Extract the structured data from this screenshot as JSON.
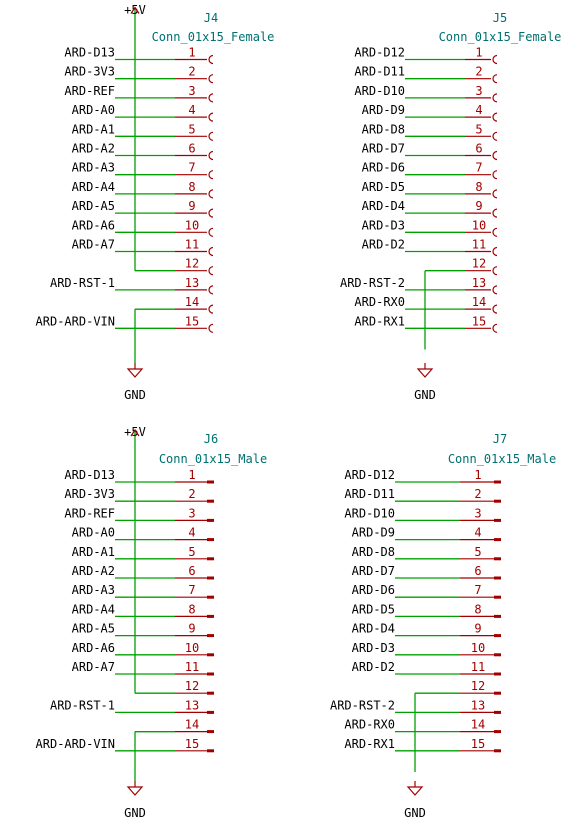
{
  "colors": {
    "wire": "#00a000",
    "pin": "#a00000",
    "power": "#a00000",
    "reference_text": "#007070",
    "label_text": "#000000"
  },
  "connectors": [
    {
      "ref": "J4",
      "value": "Conn_01x15_Female",
      "kind": "female",
      "power_top": "+5V",
      "power_bottom": "GND",
      "pins": [
        "1",
        "2",
        "3",
        "4",
        "5",
        "6",
        "7",
        "8",
        "9",
        "10",
        "11",
        "12",
        "13",
        "14",
        "15"
      ],
      "nets": [
        "ARD-D13",
        "ARD-3V3",
        "ARD-REF",
        "ARD-A0",
        "ARD-A1",
        "ARD-A2",
        "ARD-A3",
        "ARD-A4",
        "ARD-A5",
        "ARD-A6",
        "ARD-A7",
        "",
        "ARD-RST-1",
        "",
        "ARD-ARD-VIN"
      ]
    },
    {
      "ref": "J5",
      "value": "Conn_01x15_Female",
      "kind": "female",
      "power_top": "",
      "power_bottom": "GND",
      "pins": [
        "1",
        "2",
        "3",
        "4",
        "5",
        "6",
        "7",
        "8",
        "9",
        "10",
        "11",
        "12",
        "13",
        "14",
        "15"
      ],
      "nets": [
        "ARD-D12",
        "ARD-D11",
        "ARD-D10",
        "ARD-D9",
        "ARD-D8",
        "ARD-D7",
        "ARD-D6",
        "ARD-D5",
        "ARD-D4",
        "ARD-D3",
        "ARD-D2",
        "",
        "ARD-RST-2",
        "ARD-RX0",
        "ARD-RX1"
      ]
    },
    {
      "ref": "J6",
      "value": "Conn_01x15_Male",
      "kind": "male",
      "power_top": "+5V",
      "power_bottom": "GND",
      "pins": [
        "1",
        "2",
        "3",
        "4",
        "5",
        "6",
        "7",
        "8",
        "9",
        "10",
        "11",
        "12",
        "13",
        "14",
        "15"
      ],
      "nets": [
        "ARD-D13",
        "ARD-3V3",
        "ARD-REF",
        "ARD-A0",
        "ARD-A1",
        "ARD-A2",
        "ARD-A3",
        "ARD-A4",
        "ARD-A5",
        "ARD-A6",
        "ARD-A7",
        "",
        "ARD-RST-1",
        "",
        "ARD-ARD-VIN"
      ]
    },
    {
      "ref": "J7",
      "value": "Conn_01x15_Male",
      "kind": "male",
      "power_top": "",
      "power_bottom": "GND",
      "pins": [
        "1",
        "2",
        "3",
        "4",
        "5",
        "6",
        "7",
        "8",
        "9",
        "10",
        "11",
        "12",
        "13",
        "14",
        "15"
      ],
      "nets": [
        "ARD-D12",
        "ARD-D11",
        "ARD-D10",
        "ARD-D9",
        "ARD-D8",
        "ARD-D7",
        "ARD-D6",
        "ARD-D5",
        "ARD-D4",
        "ARD-D3",
        "ARD-D2",
        "",
        "ARD-RST-2",
        "ARD-RX0",
        "ARD-RX1"
      ]
    }
  ]
}
